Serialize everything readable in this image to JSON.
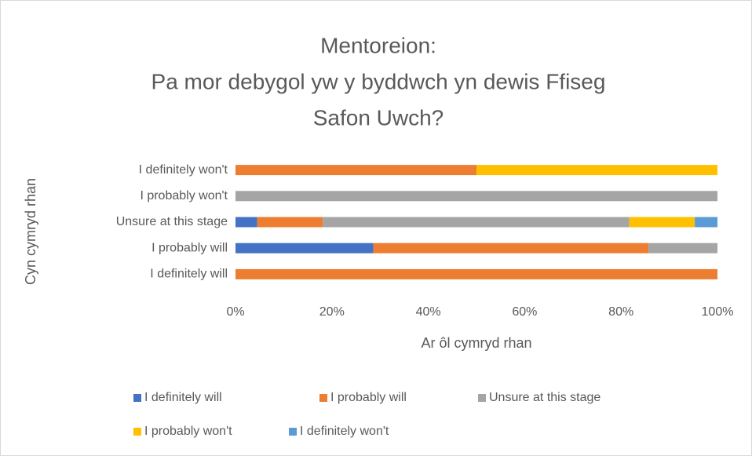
{
  "chart_data": {
    "type": "stacked_barh",
    "title": [
      "Mentoreion:",
      "Pa mor debygol yw y byddwch yn dewis Ffiseg",
      "Safon Uwch?"
    ],
    "xlabel": "Ar ôl cymryd rhan",
    "ylabel": "Cyn cymryd rhan",
    "categories": [
      "I definitely will",
      "I probably will",
      "Unsure at this stage",
      "I probably won't",
      "I definitely won't"
    ],
    "series": [
      {
        "name": "I definitely will",
        "color": "#4472c4",
        "values": [
          0,
          28.6,
          4.5,
          0,
          0
        ]
      },
      {
        "name": "I probably will",
        "color": "#ed7d31",
        "values": [
          100,
          57.1,
          13.6,
          0,
          50
        ]
      },
      {
        "name": "Unsure at this stage",
        "color": "#a5a5a5",
        "values": [
          0,
          14.3,
          63.6,
          100,
          0
        ]
      },
      {
        "name": "I probably won't",
        "color": "#ffc000",
        "values": [
          0,
          0,
          13.6,
          0,
          50
        ]
      },
      {
        "name": "I definitely won't",
        "color": "#5b9bd5",
        "values": [
          0,
          0,
          4.7,
          0,
          0
        ]
      }
    ],
    "xlim": [
      0,
      100
    ],
    "xticks": [
      {
        "value": 0,
        "label": "0%"
      },
      {
        "value": 20,
        "label": "20%"
      },
      {
        "value": 40,
        "label": "40%"
      },
      {
        "value": 60,
        "label": "60%"
      },
      {
        "value": 80,
        "label": "80%"
      },
      {
        "value": 100,
        "label": "100%"
      }
    ],
    "legend": "bottom"
  }
}
